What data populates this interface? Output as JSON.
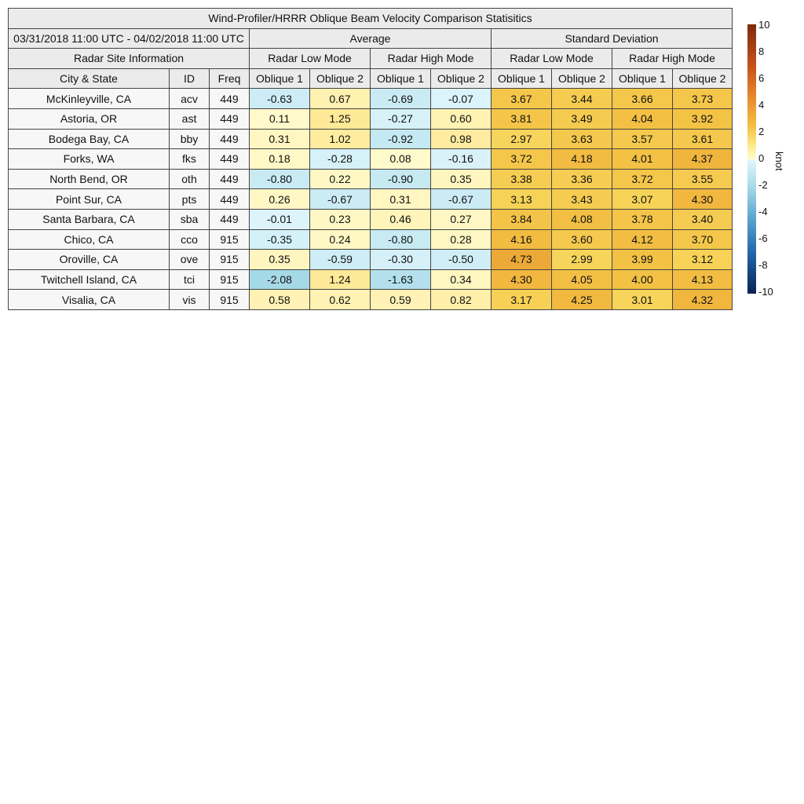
{
  "chart_data": {
    "type": "table",
    "title": "Wind-Profiler/HRRR Oblique Beam Velocity Comparison Statisitics",
    "period": "03/31/2018 11:00 UTC - 04/02/2018 11:00 UTC",
    "group_headers": {
      "average": "Average",
      "std": "Standard Deviation",
      "info": "Radar Site Information"
    },
    "mode_headers": [
      "Radar Low Mode",
      "Radar High Mode",
      "Radar Low Mode",
      "Radar High Mode"
    ],
    "columns": [
      "City & State",
      "ID",
      "Freq",
      "Oblique 1",
      "Oblique 2",
      "Oblique 1",
      "Oblique 2",
      "Oblique 1",
      "Oblique 2",
      "Oblique 1",
      "Oblique 2"
    ],
    "rows": [
      {
        "city": "McKinleyville, CA",
        "id": "acv",
        "freq": "449",
        "values": [
          "-0.63",
          "0.67",
          "-0.69",
          "-0.07",
          "3.67",
          "3.44",
          "3.66",
          "3.73"
        ]
      },
      {
        "city": "Astoria, OR",
        "id": "ast",
        "freq": "449",
        "values": [
          "0.11",
          "1.25",
          "-0.27",
          "0.60",
          "3.81",
          "3.49",
          "4.04",
          "3.92"
        ]
      },
      {
        "city": "Bodega Bay, CA",
        "id": "bby",
        "freq": "449",
        "values": [
          "0.31",
          "1.02",
          "-0.92",
          "0.98",
          "2.97",
          "3.63",
          "3.57",
          "3.61"
        ]
      },
      {
        "city": "Forks, WA",
        "id": "fks",
        "freq": "449",
        "values": [
          "0.18",
          "-0.28",
          "0.08",
          "-0.16",
          "3.72",
          "4.18",
          "4.01",
          "4.37"
        ]
      },
      {
        "city": "North Bend, OR",
        "id": "oth",
        "freq": "449",
        "values": [
          "-0.80",
          "0.22",
          "-0.90",
          "0.35",
          "3.38",
          "3.36",
          "3.72",
          "3.55"
        ]
      },
      {
        "city": "Point Sur, CA",
        "id": "pts",
        "freq": "449",
        "values": [
          "0.26",
          "-0.67",
          "0.31",
          "-0.67",
          "3.13",
          "3.43",
          "3.07",
          "4.30"
        ]
      },
      {
        "city": "Santa Barbara, CA",
        "id": "sba",
        "freq": "449",
        "values": [
          "-0.01",
          "0.23",
          "0.46",
          "0.27",
          "3.84",
          "4.08",
          "3.78",
          "3.40"
        ]
      },
      {
        "city": "Chico, CA",
        "id": "cco",
        "freq": "915",
        "values": [
          "-0.35",
          "0.24",
          "-0.80",
          "0.28",
          "4.16",
          "3.60",
          "4.12",
          "3.70"
        ]
      },
      {
        "city": "Oroville, CA",
        "id": "ove",
        "freq": "915",
        "values": [
          "0.35",
          "-0.59",
          "-0.30",
          "-0.50",
          "4.73",
          "2.99",
          "3.99",
          "3.12"
        ]
      },
      {
        "city": "Twitchell Island, CA",
        "id": "tci",
        "freq": "915",
        "values": [
          "-2.08",
          "1.24",
          "-1.63",
          "0.34",
          "4.30",
          "4.05",
          "4.00",
          "4.13"
        ]
      },
      {
        "city": "Visalia, CA",
        "id": "vis",
        "freq": "915",
        "values": [
          "0.58",
          "0.62",
          "0.59",
          "0.82",
          "3.17",
          "4.25",
          "3.01",
          "4.32"
        ]
      }
    ],
    "colorbar": {
      "label": "knot",
      "range": [
        -10,
        10
      ],
      "ticks": [
        "10",
        "8",
        "6",
        "4",
        "2",
        "0",
        "-2",
        "-4",
        "-6",
        "-8",
        "-10"
      ]
    }
  }
}
